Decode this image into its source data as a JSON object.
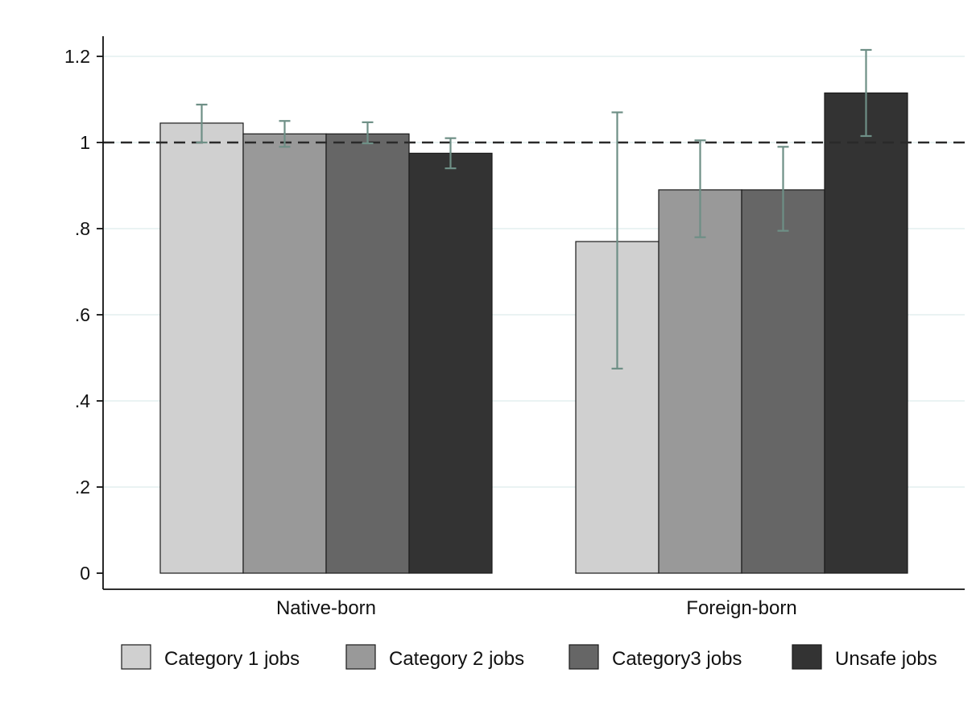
{
  "chart_data": {
    "type": "bar",
    "title": "",
    "xlabel": "",
    "ylabel": "",
    "ylim": [
      0,
      1.25
    ],
    "yticks": [
      {
        "value": 0,
        "label": "0"
      },
      {
        "value": 0.2,
        "label": ".2"
      },
      {
        "value": 0.4,
        "label": ".4"
      },
      {
        "value": 0.6,
        "label": ".6"
      },
      {
        "value": 0.8,
        "label": ".8"
      },
      {
        "value": 1,
        "label": "1"
      },
      {
        "value": 1.2,
        "label": "1.2"
      }
    ],
    "categories": [
      "Native-born",
      "Foreign-born"
    ],
    "series": [
      {
        "name": "Category 1 jobs",
        "color": "#d0d0d0",
        "values": [
          1.045,
          0.77
        ],
        "ci_low": [
          1.0,
          0.475
        ],
        "ci_high": [
          1.088,
          1.07
        ]
      },
      {
        "name": "Category 2 jobs",
        "color": "#999999",
        "values": [
          1.02,
          0.89
        ],
        "ci_low": [
          0.99,
          0.78
        ],
        "ci_high": [
          1.05,
          1.005
        ]
      },
      {
        "name": "Category3 jobs",
        "color": "#666666",
        "values": [
          1.02,
          0.89
        ],
        "ci_low": [
          0.998,
          0.795
        ],
        "ci_high": [
          1.047,
          0.99
        ]
      },
      {
        "name": "Unsafe jobs",
        "color": "#333333",
        "values": [
          0.975,
          1.115
        ],
        "ci_low": [
          0.94,
          1.015
        ],
        "ci_high": [
          1.01,
          1.215
        ]
      }
    ],
    "reference_line": {
      "value": 1,
      "style": "dashed"
    },
    "error_bar_color": "#6e8f86",
    "grid": true,
    "grid_color": "#e4efef",
    "legend": {
      "position": "bottom",
      "columns": 4
    }
  }
}
